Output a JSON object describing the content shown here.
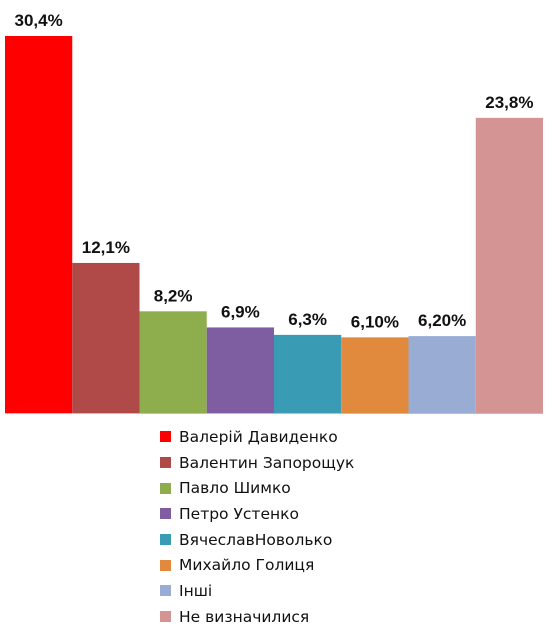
{
  "chart_data": {
    "type": "bar",
    "categories": [
      "Валерій Давиденко",
      "Валентин Запорощук",
      "Павло Шимко",
      "Петро Устенко",
      "ВячеславНоволько",
      "Михайло Голиця",
      "Інші",
      "Не визначилися"
    ],
    "values": [
      30.4,
      12.1,
      8.2,
      6.9,
      6.3,
      6.1,
      6.2,
      23.8
    ],
    "value_labels": [
      "30,4%",
      "12,1%",
      "8,2%",
      "6,9%",
      "6,3%",
      "6,10%",
      "6,20%",
      "23,8%"
    ],
    "colors": [
      "#ff0000",
      "#b04a48",
      "#8eae4e",
      "#7e5ea0",
      "#3a9cb4",
      "#e18a3e",
      "#98acd4",
      "#d49494"
    ],
    "ylim": [
      0,
      30.4
    ],
    "grid": false,
    "legend_position": "bottom"
  }
}
